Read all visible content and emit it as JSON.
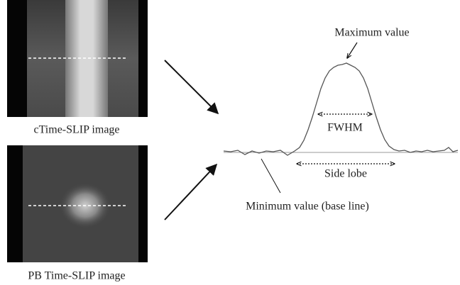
{
  "images": [
    {
      "label": "cTime-SLIP image"
    },
    {
      "label": "PB Time-SLIP image"
    }
  ],
  "annotations": {
    "maximum": "Maximum value",
    "fwhm": "FWHM",
    "side_lobe": "Side lobe",
    "minimum": "Minimum value (base line)"
  }
}
